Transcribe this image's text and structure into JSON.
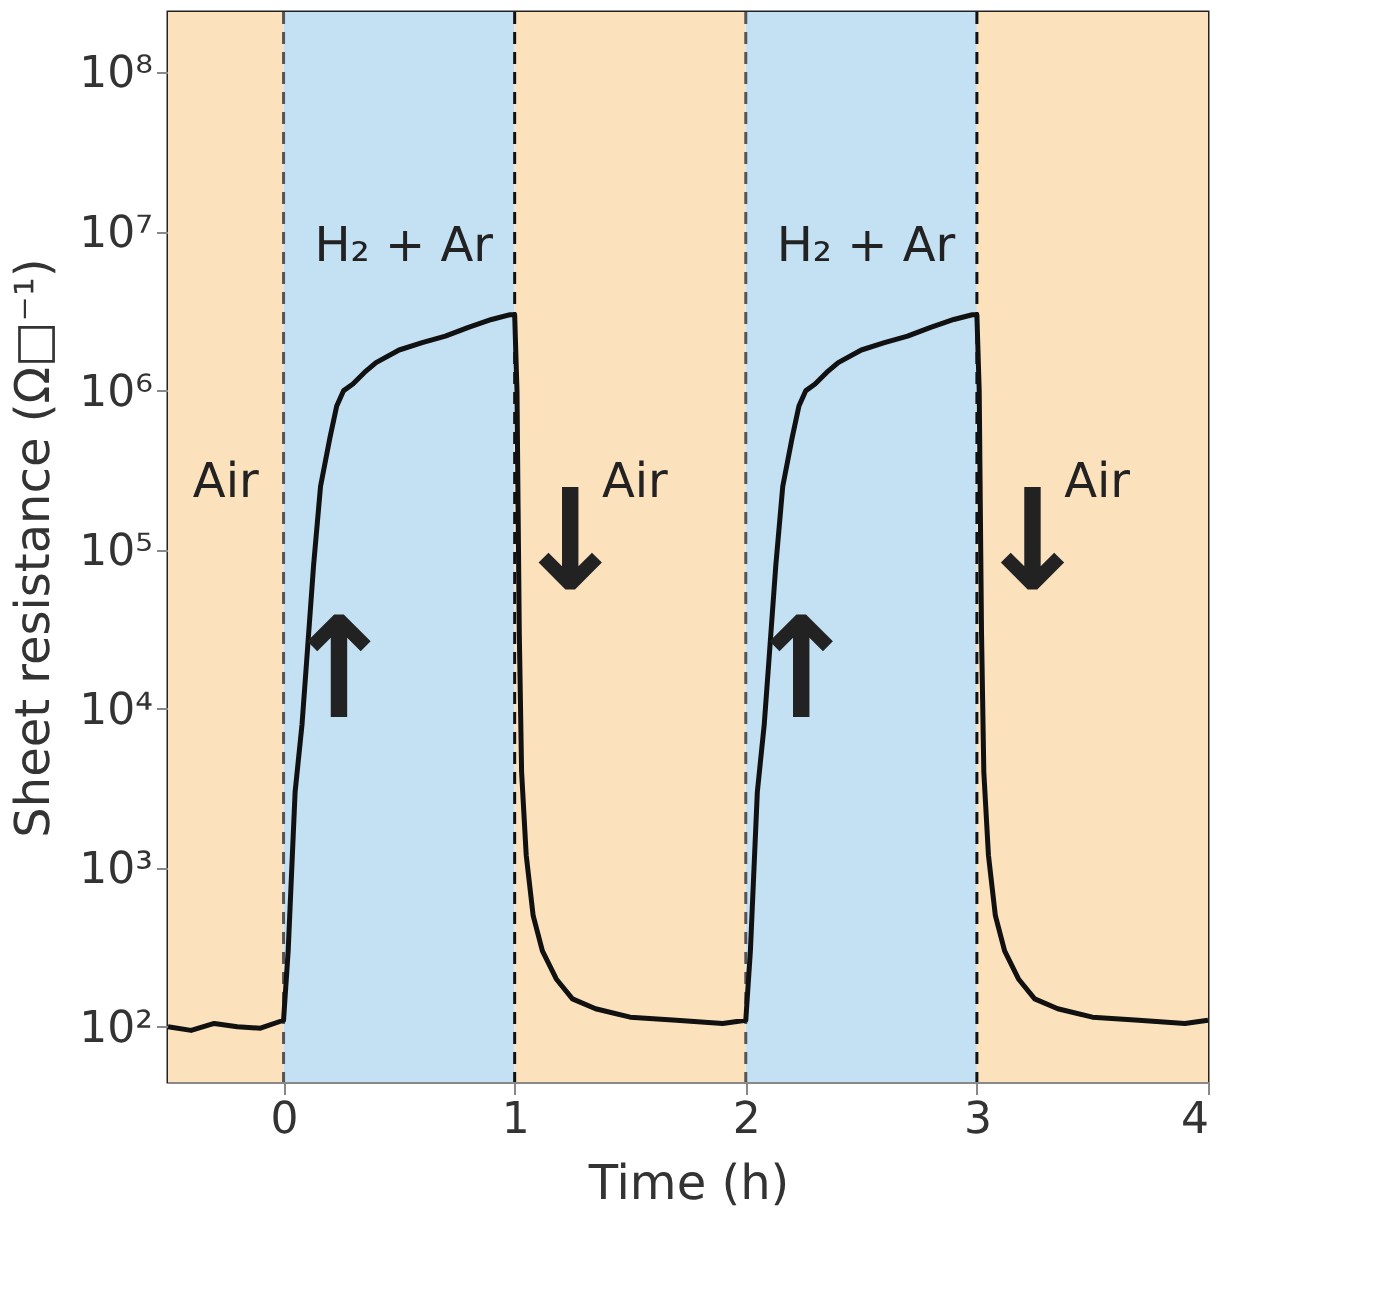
{
  "chart_data": {
    "type": "line",
    "xlabel": "Time (h)",
    "ylabel": "Sheet resistance (Ω□⁻¹)",
    "xlim": [
      -0.5,
      4
    ],
    "xticks": [
      0,
      1,
      2,
      3,
      4
    ],
    "ylim": [
      45,
      240000000
    ],
    "log": true,
    "yticks": [
      {
        "value": 100,
        "label": "10²"
      },
      {
        "value": 1000,
        "label": "10³"
      },
      {
        "value": 10000,
        "label": "10⁴"
      },
      {
        "value": 100000,
        "label": "10⁵"
      },
      {
        "value": 1000000,
        "label": "10⁶"
      },
      {
        "value": 10000000,
        "label": "10⁷"
      },
      {
        "value": 100000000,
        "label": "10⁸"
      }
    ],
    "grid": false,
    "marker": "none",
    "line_style": "solid",
    "series": [
      {
        "color": "#111111",
        "x": [
          -0.5,
          -0.4,
          -0.3,
          -0.2,
          -0.1,
          0,
          0.02,
          0.05,
          0.08,
          0.1,
          0.13,
          0.16,
          0.2,
          0.23,
          0.26,
          0.3,
          0.35,
          0.4,
          0.5,
          0.6,
          0.7,
          0.8,
          0.9,
          0.98,
          1.0,
          1.01,
          1.02,
          1.03,
          1.05,
          1.08,
          1.12,
          1.18,
          1.25,
          1.35,
          1.5,
          1.7,
          1.9,
          2.0,
          2.02,
          2.05,
          2.08,
          2.1,
          2.13,
          2.16,
          2.2,
          2.23,
          2.26,
          2.3,
          2.35,
          2.4,
          2.5,
          2.6,
          2.7,
          2.8,
          2.9,
          2.98,
          3.0,
          3.01,
          3.02,
          3.03,
          3.05,
          3.08,
          3.12,
          3.18,
          3.25,
          3.35,
          3.5,
          3.7,
          3.9,
          4.0
        ],
        "values": [
          100,
          95,
          105,
          100,
          98,
          110,
          300,
          3000,
          8000,
          20000,
          80000,
          250000,
          500000,
          800000,
          1000000,
          1100000,
          1300000,
          1500000,
          1800000,
          2000000,
          2200000,
          2500000,
          2800000,
          3000000,
          3000000,
          1000000,
          30000,
          4000,
          1200,
          500,
          300,
          200,
          150,
          130,
          115,
          110,
          105,
          110,
          300,
          3000,
          8000,
          20000,
          80000,
          250000,
          500000,
          800000,
          1000000,
          1100000,
          1300000,
          1500000,
          1800000,
          2000000,
          2200000,
          2500000,
          2800000,
          3000000,
          3000000,
          1000000,
          30000,
          4000,
          1200,
          500,
          300,
          200,
          150,
          130,
          115,
          110,
          105,
          110
        ]
      }
    ],
    "bands": [
      {
        "axis": "x",
        "from": -0.5,
        "to": 0,
        "color": "#fbe2bd",
        "label": "Air"
      },
      {
        "axis": "x",
        "from": 0,
        "to": 1,
        "color": "#c4e0f3",
        "label": "H₂ + Ar"
      },
      {
        "axis": "x",
        "from": 1,
        "to": 2,
        "color": "#fbe2bd",
        "label": "Air"
      },
      {
        "axis": "x",
        "from": 2,
        "to": 3,
        "color": "#c4e0f3",
        "label": "H₂ + Ar"
      },
      {
        "axis": "x",
        "from": 3,
        "to": 4,
        "color": "#fbe2bd",
        "label": "Air"
      }
    ],
    "ref_lines": [
      {
        "axis": "x",
        "value": 0,
        "color": "#555555",
        "line_style": "dashed"
      },
      {
        "axis": "x",
        "value": 1,
        "color": "#111111",
        "line_style": "dashed"
      },
      {
        "axis": "x",
        "value": 2,
        "color": "#555555",
        "line_style": "dashed"
      },
      {
        "axis": "x",
        "value": 3,
        "color": "#111111",
        "line_style": "dashed"
      }
    ],
    "annotations": [
      "↑",
      "↓",
      "↑",
      "↓"
    ]
  }
}
